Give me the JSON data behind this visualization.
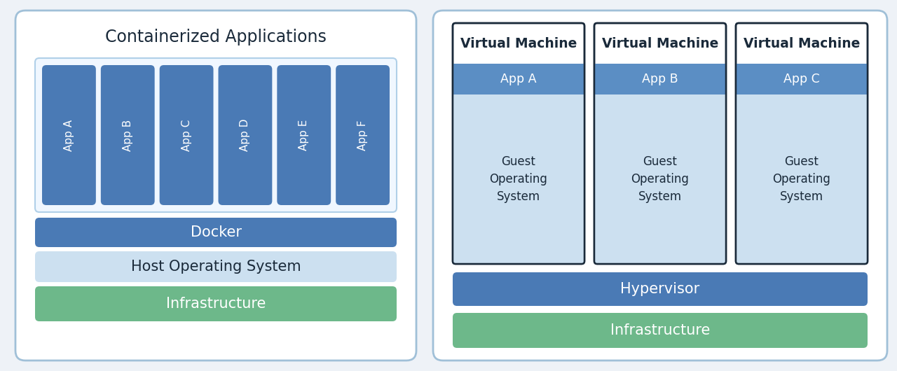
{
  "bg_color": "#eef2f7",
  "panel_bg": "#ffffff",
  "panel_border": "#a0c0d8",
  "blue_dark": "#4a7ab5",
  "blue_mid": "#5b8ec4",
  "blue_light": "#cce0f0",
  "green": "#6db88a",
  "white": "#ffffff",
  "text_dark": "#1a2a3a",
  "text_white": "#ffffff",
  "left_title": "Containerized Applications",
  "apps_left": [
    "App A",
    "App B",
    "App C",
    "App D",
    "App E",
    "App F"
  ],
  "docker_label": "Docker",
  "host_os_label": "Host Operating System",
  "infra_label": "Infrastructure",
  "vm_labels": [
    "Virtual Machine",
    "Virtual Machine",
    "Virtual Machine"
  ],
  "app_vm_labels": [
    "App A",
    "App B",
    "App C"
  ],
  "guest_os_label": "Guest\nOperating\nSystem",
  "hypervisor_label": "Hypervisor",
  "infra_vm_label": "Infrastructure"
}
